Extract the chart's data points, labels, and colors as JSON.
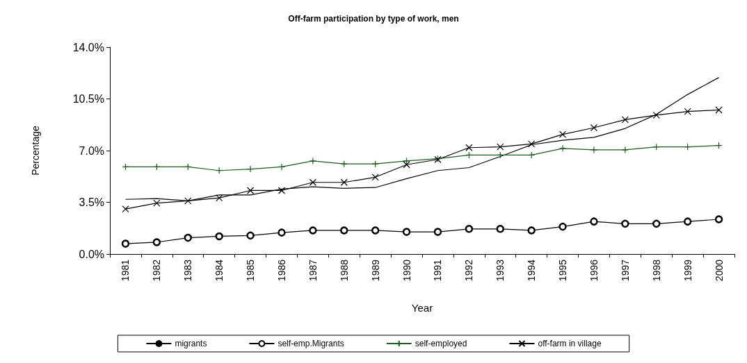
{
  "chart_data": {
    "type": "line",
    "title": "Off-farm participation by type of work, men",
    "xlabel": "Year",
    "ylabel": "Percentage",
    "categories": [
      "1981",
      "1982",
      "1983",
      "1984",
      "1985",
      "1986",
      "1987",
      "1988",
      "1989",
      "1990",
      "1991",
      "1992",
      "1993",
      "1994",
      "1995",
      "1996",
      "1997",
      "1998",
      "1999",
      "2000"
    ],
    "series": [
      {
        "name": "migrants",
        "color": "#000000",
        "marker": "none",
        "values": [
          3.7,
          3.75,
          3.6,
          4.0,
          4.0,
          4.4,
          4.55,
          4.45,
          4.5,
          5.1,
          5.65,
          5.85,
          6.6,
          7.4,
          7.7,
          7.9,
          8.5,
          9.45,
          10.8,
          11.95
        ]
      },
      {
        "name": "self-emp.Migrants",
        "color": "#000000",
        "marker": "circle",
        "values": [
          0.7,
          0.8,
          1.1,
          1.2,
          1.25,
          1.45,
          1.6,
          1.6,
          1.6,
          1.5,
          1.5,
          1.7,
          1.7,
          1.6,
          1.85,
          2.2,
          2.05,
          2.05,
          2.2,
          2.35
        ]
      },
      {
        "name": "self-employed",
        "color": "#1e5a1e",
        "marker": "cross",
        "values": [
          5.9,
          5.9,
          5.9,
          5.65,
          5.75,
          5.9,
          6.3,
          6.1,
          6.1,
          6.3,
          6.45,
          6.7,
          6.7,
          6.7,
          7.15,
          7.05,
          7.05,
          7.25,
          7.25,
          7.35
        ]
      },
      {
        "name": "off-farm in village",
        "color": "#000000",
        "marker": "x",
        "values": [
          3.05,
          3.45,
          3.6,
          3.8,
          4.3,
          4.3,
          4.85,
          4.85,
          5.2,
          6.05,
          6.4,
          7.2,
          7.25,
          7.45,
          8.1,
          8.55,
          9.1,
          9.4,
          9.65,
          9.75
        ]
      }
    ],
    "ylim": [
      0,
      14
    ],
    "yticks": [
      {
        "value": 0,
        "label": "0.0%"
      },
      {
        "value": 3.5,
        "label": "3.5%"
      },
      {
        "value": 7,
        "label": "7.0%"
      },
      {
        "value": 10.5,
        "label": "10.5%"
      },
      {
        "value": 14,
        "label": "14.0%"
      }
    ],
    "grid": false,
    "legend": "bottom",
    "line_style": "solid"
  }
}
